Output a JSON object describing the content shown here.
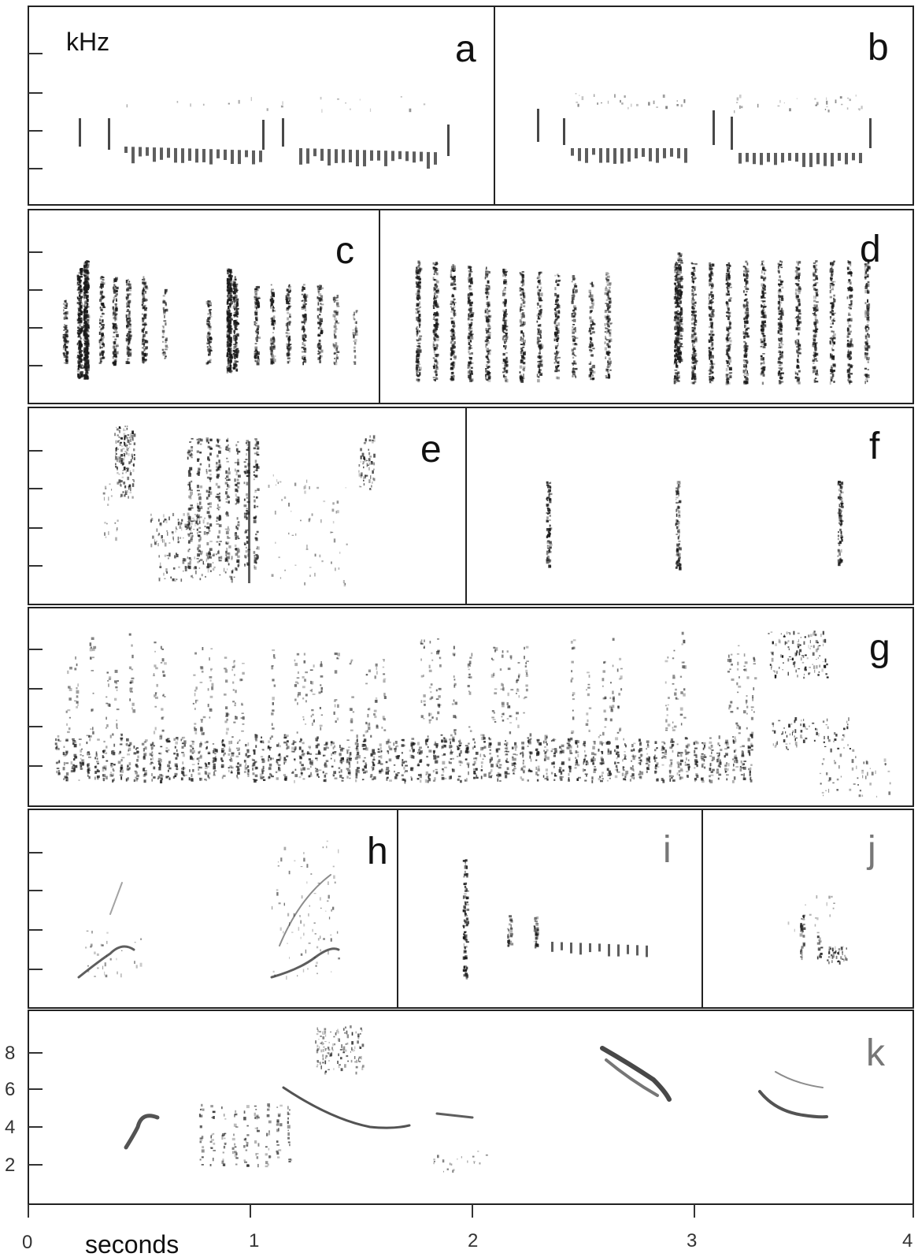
{
  "figure": {
    "unit_label": "kHz",
    "x_title": "seconds",
    "x_ticks": [
      "0",
      "1",
      "2",
      "3",
      "4"
    ],
    "y_ticks_bottom": [
      "2",
      "4",
      "6",
      "8"
    ],
    "panels": [
      {
        "id": "a",
        "letter": "a"
      },
      {
        "id": "b",
        "letter": "b"
      },
      {
        "id": "c",
        "letter": "c"
      },
      {
        "id": "d",
        "letter": "d"
      },
      {
        "id": "e",
        "letter": "e"
      },
      {
        "id": "f",
        "letter": "f"
      },
      {
        "id": "g",
        "letter": "g"
      },
      {
        "id": "h",
        "letter": "h"
      },
      {
        "id": "i",
        "letter": "i"
      },
      {
        "id": "j",
        "letter": "j"
      },
      {
        "id": "k",
        "letter": "k"
      }
    ],
    "colors": {
      "ink": "#1a1a1a",
      "frame": "#222222",
      "background": "#ffffff"
    }
  }
}
